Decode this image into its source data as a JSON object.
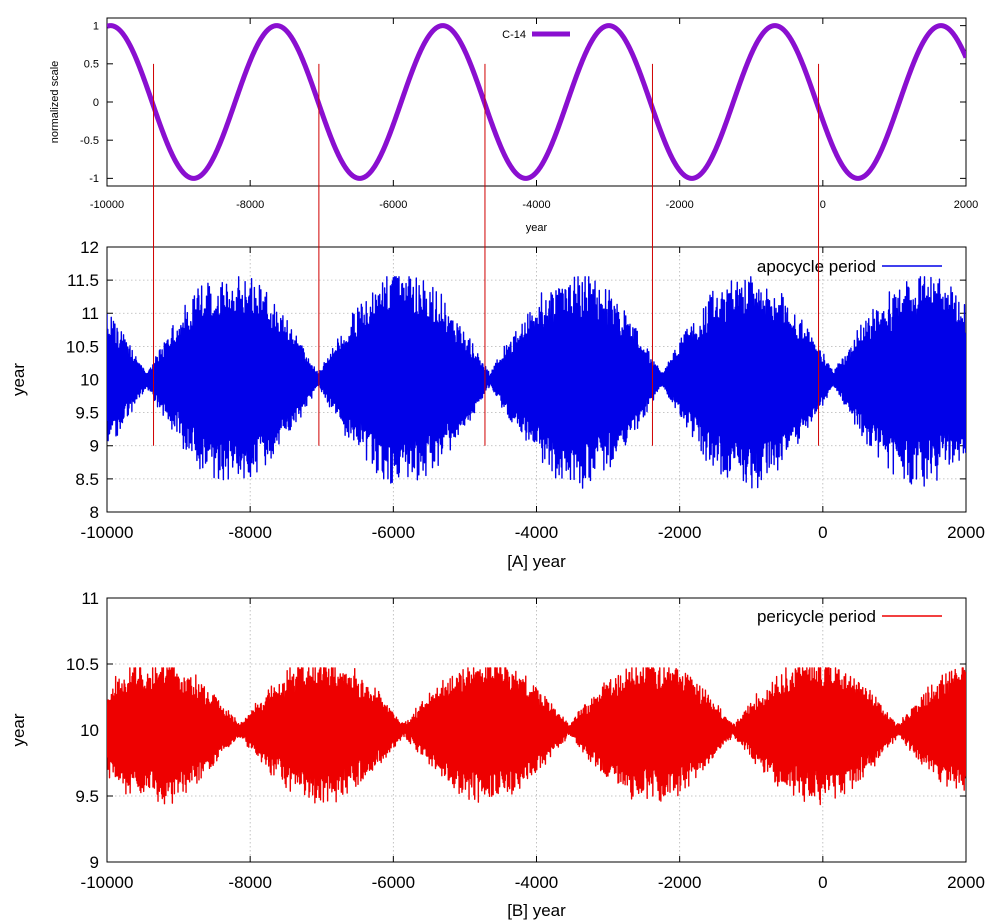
{
  "chart_data": [
    {
      "type": "line",
      "title": "",
      "xlabel": "year",
      "ylabel": "normalized scale",
      "xlim": [
        -10000,
        2000
      ],
      "ylim": [
        -1.1,
        1.1
      ],
      "x_ticks": [
        "-10000",
        "-8000",
        "-6000",
        "-4000",
        "-2000",
        "0",
        "2000"
      ],
      "y_ticks": [
        "-1",
        "-0.5",
        "0",
        "0.5",
        "1"
      ],
      "legend_position": "top-center",
      "grid": false,
      "series": [
        {
          "name": "C-14",
          "color": "#8a0fd0",
          "form": "cosine",
          "amplitude": 1,
          "period_years": 2320,
          "peak_at_year": -9950,
          "peaks": [
            -9950,
            -7630,
            -5310,
            -2990,
            -670,
            1650
          ],
          "troughs": [
            -8790,
            -6470,
            -4150,
            -1830,
            490
          ]
        }
      ],
      "annotations": {
        "vertical_markers_years": [
          -9350,
          -7040,
          -4720,
          -2380,
          -60
        ],
        "marker_color": "#d00000",
        "marker_span": "from y=0.5 of the top panel down to y=9 of panel A"
      }
    },
    {
      "type": "line",
      "title": "",
      "xlabel": "[A]   year",
      "ylabel": "year",
      "xlim": [
        -10000,
        2000
      ],
      "ylim": [
        8,
        12
      ],
      "x_ticks": [
        "-10000",
        "-8000",
        "-6000",
        "-4000",
        "-2000",
        "0",
        "2000"
      ],
      "y_ticks": [
        "8",
        "8.5",
        "9",
        "9.5",
        "10",
        "10.5",
        "11",
        "11.5",
        "12"
      ],
      "legend_position": "top-right",
      "grid": true,
      "series": [
        {
          "name": "apocycle period",
          "color": "#0000e8",
          "center": 10,
          "beat_envelope_peaks_years": [
            -8250,
            -5850,
            -3550,
            -1200,
            1100
          ],
          "beat_envelope_nodes_years": [
            -9600,
            -7150,
            -4800,
            -2450,
            -100
          ],
          "max_value": 11.55,
          "min_value": 8.35,
          "ripple_period_years": 10
        }
      ]
    },
    {
      "type": "line",
      "title": "",
      "xlabel": "[B]   year",
      "ylabel": "year",
      "xlim": [
        -10000,
        2000
      ],
      "ylim": [
        9,
        11
      ],
      "x_ticks": [
        "-10000",
        "-8000",
        "-6000",
        "-4000",
        "-2000",
        "0",
        "2000"
      ],
      "y_ticks": [
        "9",
        "9.5",
        "10",
        "10.5",
        "11"
      ],
      "legend_position": "top-right",
      "grid": true,
      "series": [
        {
          "name": "pericycle period",
          "color": "#ee0000",
          "center": 10,
          "beat_envelope_peaks_years": [
            -9300,
            -7000,
            -4650,
            -2350,
            0
          ],
          "beat_envelope_nodes_years": [
            -8150,
            -5800,
            -3500,
            -1150,
            1150
          ],
          "max_value": 10.47,
          "min_value": 9.43,
          "ripple_period_years": 10
        }
      ]
    }
  ]
}
